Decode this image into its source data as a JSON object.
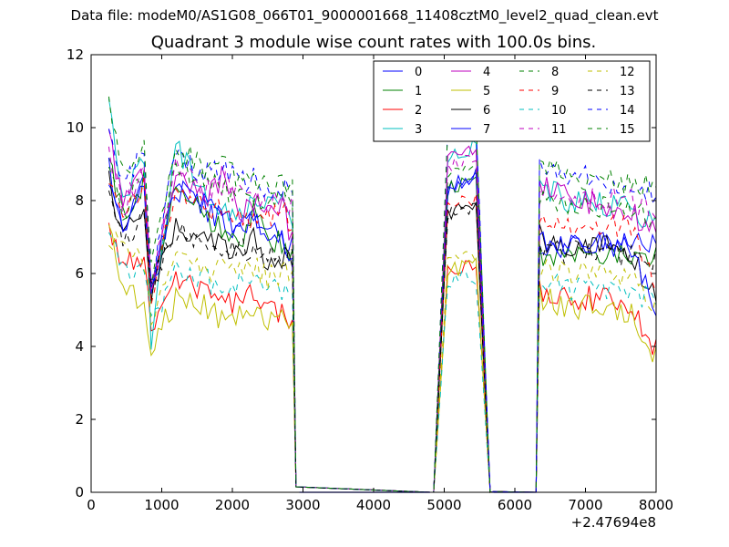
{
  "header": {
    "data_file": "Data file: modeM0/AS1G08_066T01_9000001668_11408cztM0_level2_quad_clean.evt"
  },
  "chart_data": {
    "type": "line",
    "title": "Quadrant 3 module wise count rates with 100.0s bins.",
    "xlabel": "",
    "ylabel": "",
    "x_offset_label": "+2.47694e8",
    "xlim": [
      0,
      8000
    ],
    "ylim": [
      0,
      12
    ],
    "x_ticks": [
      0,
      1000,
      2000,
      3000,
      4000,
      5000,
      6000,
      7000,
      8000
    ],
    "y_ticks": [
      0,
      2,
      4,
      6,
      8,
      10,
      12
    ],
    "x_tick_labels": [
      "0",
      "1000",
      "2000",
      "3000",
      "4000",
      "5000",
      "6000",
      "7000",
      "8000"
    ],
    "y_tick_labels": [
      "0",
      "2",
      "4",
      "6",
      "8",
      "10",
      "12"
    ],
    "grid": false,
    "legend_position": "top-right",
    "segments": [
      {
        "start": 250,
        "end": 2850,
        "step": 50,
        "prefix": [],
        "suffix": [
          0.15
        ]
      },
      {
        "start": 4850,
        "end": 5650,
        "step": 50,
        "prefix": [
          0
        ],
        "suffix": [
          0.02
        ]
      },
      {
        "start": 6350,
        "end": 8000,
        "step": 50,
        "prefix": [
          0
        ],
        "suffix": []
      }
    ],
    "series": [
      {
        "name": "0",
        "color": "#0000ff",
        "dashed": false,
        "values": [
          8.6,
          7.1,
          8.4,
          5.4,
          8.3,
          7.8,
          7.4,
          7.2,
          7.5,
          7.2,
          6.9,
          6.8,
          8.6,
          7.3,
          6.7,
          6.8,
          6.8,
          6.8
        ]
      },
      {
        "name": "1",
        "color": "#008000",
        "dashed": false,
        "values": [
          9.2,
          7.5,
          8.5,
          5.4,
          8.6,
          7.5,
          7.1,
          6.9,
          7.6,
          7.0,
          6.8,
          6.6,
          8.6,
          7.1,
          6.5,
          6.5,
          6.5,
          6.5
        ]
      },
      {
        "name": "2",
        "color": "#ff0000",
        "dashed": false,
        "values": [
          7.2,
          6.4,
          6.5,
          4.4,
          5.8,
          5.5,
          5.3,
          5.2,
          5.5,
          4.9,
          4.9,
          4.8,
          6.3,
          5.8,
          5.5,
          5.4,
          5.2,
          3.9
        ]
      },
      {
        "name": "3",
        "color": "#00bfbf",
        "dashed": false,
        "values": [
          10.7,
          7.9,
          9.3,
          4.1,
          9.5,
          8.1,
          7.8,
          7.6,
          8.0,
          7.8,
          8.1,
          7.3,
          9.5,
          8.9,
          8.3,
          8.0,
          7.8,
          7.4
        ]
      },
      {
        "name": "4",
        "color": "#bf00bf",
        "dashed": false,
        "values": [
          9.8,
          7.9,
          8.7,
          5.5,
          8.8,
          8.0,
          8.8,
          7.6,
          8.0,
          7.8,
          7.8,
          7.2,
          9.5,
          8.9,
          8.3,
          8.1,
          7.7,
          7.2
        ]
      },
      {
        "name": "5",
        "color": "#bfbf00",
        "dashed": false,
        "values": [
          7.2,
          5.7,
          5.2,
          3.9,
          5.3,
          5.1,
          4.7,
          4.9,
          4.9,
          4.8,
          4.7,
          4.6,
          6.3,
          5.6,
          5.3,
          5.1,
          5.0,
          3.7
        ]
      },
      {
        "name": "6",
        "color": "#000000",
        "dashed": false,
        "values": [
          8.5,
          7.0,
          7.6,
          5.6,
          7.2,
          7.0,
          6.8,
          6.6,
          6.9,
          6.3,
          6.5,
          6.4,
          7.9,
          7.6,
          6.9,
          6.8,
          6.7,
          5.2
        ]
      },
      {
        "name": "7",
        "color": "#0000ff",
        "dashed": false,
        "values": [
          8.9,
          7.3,
          8.4,
          5.5,
          8.3,
          7.9,
          7.4,
          7.3,
          7.5,
          7.0,
          6.9,
          6.7,
          8.7,
          7.3,
          6.8,
          6.8,
          6.8,
          4.9
        ]
      },
      {
        "name": "8",
        "color": "#008000",
        "dashed": true,
        "values": [
          9.0,
          7.6,
          8.8,
          5.6,
          9.0,
          8.5,
          8.3,
          8.0,
          8.1,
          7.8,
          8.2,
          7.8,
          9.0,
          8.3,
          7.9,
          7.8,
          7.8,
          7.5
        ]
      },
      {
        "name": "9",
        "color": "#ff0000",
        "dashed": true,
        "values": [
          8.6,
          7.5,
          8.3,
          5.4,
          8.2,
          7.8,
          7.7,
          7.5,
          7.6,
          7.6,
          7.7,
          7.4,
          8.0,
          7.6,
          7.3,
          7.3,
          7.3,
          5.8
        ]
      },
      {
        "name": "10",
        "color": "#00bfbf",
        "dashed": true,
        "values": [
          6.9,
          6.1,
          6.0,
          4.6,
          6.0,
          5.8,
          5.7,
          5.7,
          5.7,
          5.5,
          5.5,
          5.3,
          5.9,
          5.8,
          5.7,
          5.6,
          5.5,
          5.3
        ]
      },
      {
        "name": "11",
        "color": "#bf00bf",
        "dashed": true,
        "values": [
          9.5,
          7.8,
          9.0,
          5.6,
          9.0,
          8.3,
          8.5,
          8.1,
          8.2,
          7.8,
          8.3,
          7.9,
          9.2,
          8.6,
          8.3,
          8.0,
          8.0,
          7.8
        ]
      },
      {
        "name": "12",
        "color": "#bfbf00",
        "dashed": true,
        "values": [
          7.0,
          6.6,
          6.3,
          4.8,
          6.5,
          6.0,
          6.4,
          6.0,
          6.2,
          5.9,
          6.0,
          5.9,
          6.5,
          6.3,
          6.1,
          6.0,
          6.0,
          5.2
        ]
      },
      {
        "name": "13",
        "color": "#000000",
        "dashed": true,
        "values": [
          8.2,
          6.9,
          7.5,
          5.6,
          7.2,
          6.9,
          6.7,
          6.6,
          6.8,
          6.5,
          6.5,
          6.4,
          7.8,
          7.5,
          6.7,
          6.6,
          6.5,
          6.4
        ]
      },
      {
        "name": "14",
        "color": "#0000ff",
        "dashed": true,
        "values": [
          10.0,
          8.4,
          9.3,
          5.8,
          9.2,
          8.8,
          8.9,
          8.6,
          8.6,
          8.3,
          8.4,
          8.2,
          10.2,
          8.9,
          8.9,
          8.7,
          8.4,
          8.2
        ]
      },
      {
        "name": "15",
        "color": "#008000",
        "dashed": true,
        "values": [
          10.6,
          8.7,
          9.4,
          6.1,
          9.5,
          8.9,
          8.9,
          8.5,
          8.6,
          8.5,
          8.4,
          8.3,
          10.1,
          9.1,
          8.8,
          8.7,
          8.5,
          8.3
        ]
      }
    ]
  }
}
